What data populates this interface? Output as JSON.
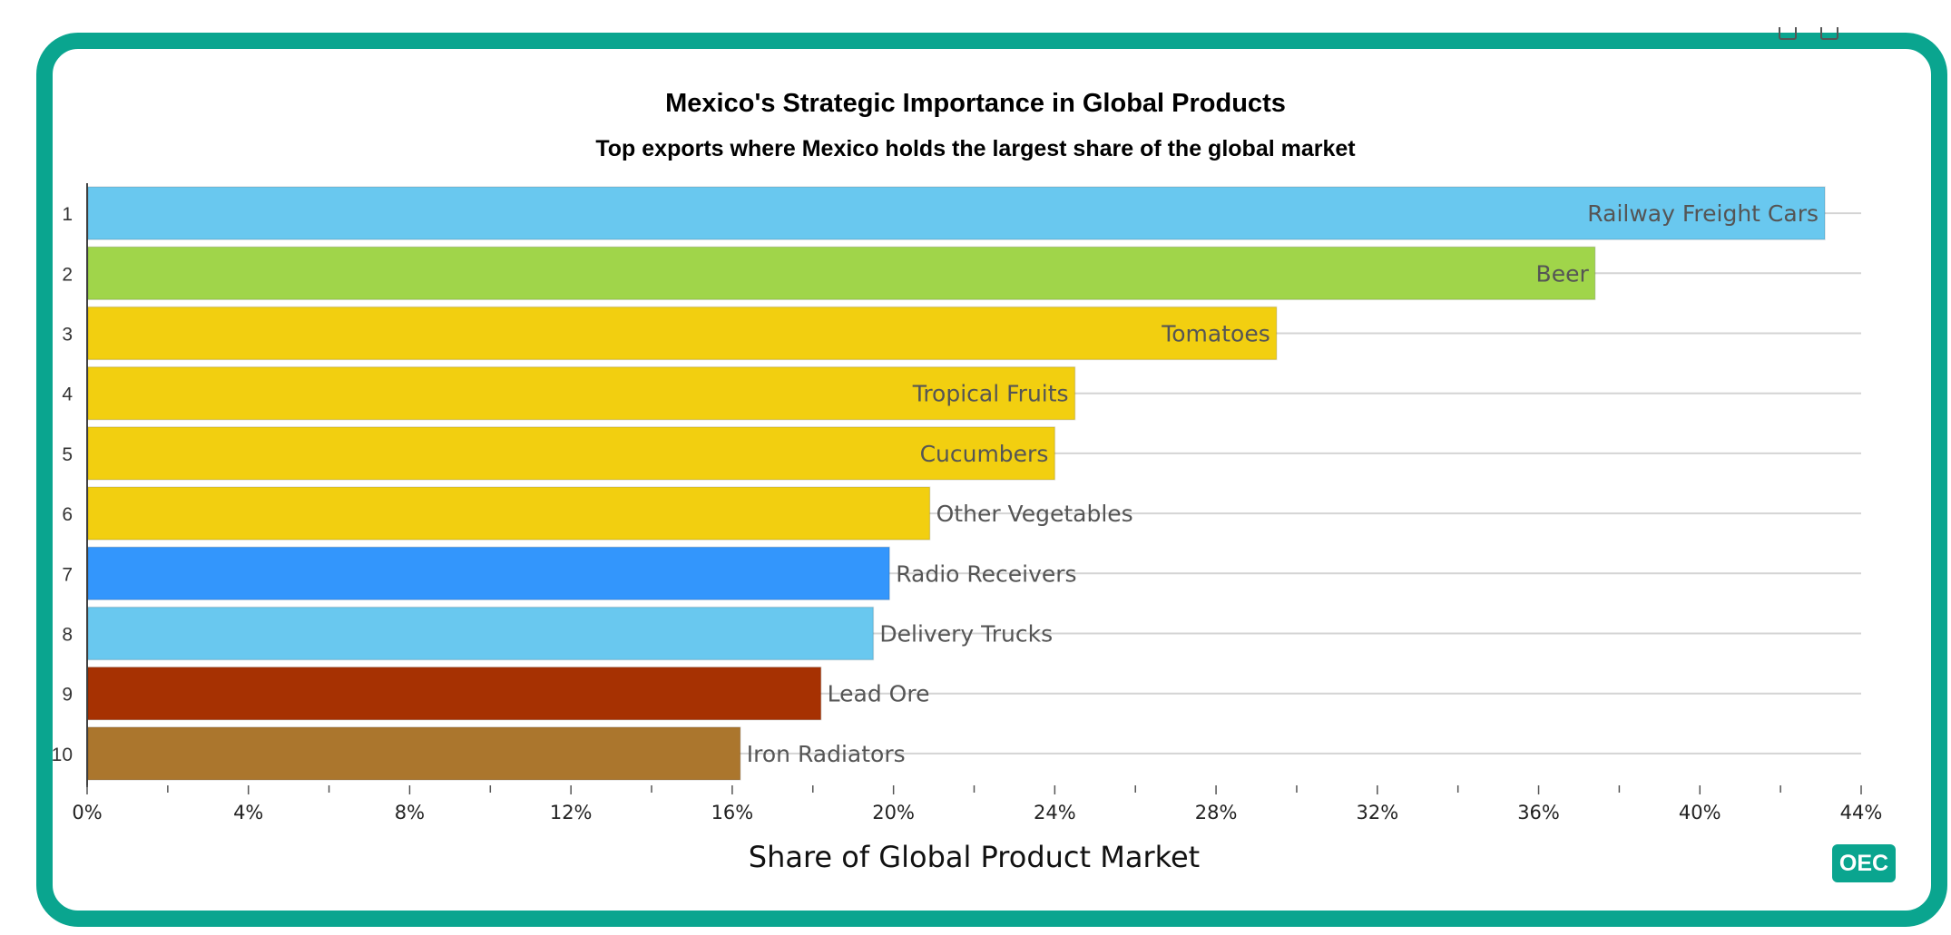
{
  "badge": "OEC",
  "chart_data": {
    "type": "bar",
    "orientation": "horizontal",
    "title": "Mexico's Strategic Importance in Global Products",
    "subtitle": "Top exports where Mexico holds the largest share of the global market",
    "xlabel": "Share of Global Product Market",
    "ylabel": "",
    "xlim": [
      0,
      44
    ],
    "x_ticks": [
      "0%",
      "4%",
      "8%",
      "12%",
      "16%",
      "20%",
      "24%",
      "28%",
      "32%",
      "36%",
      "40%",
      "44%"
    ],
    "x_tick_values": [
      0,
      4,
      8,
      12,
      16,
      20,
      24,
      28,
      32,
      36,
      40,
      44
    ],
    "grid": true,
    "bars": [
      {
        "rank": "1",
        "label": "Railway Freight Cars",
        "value": 43.1,
        "color": "#69c8ef"
      },
      {
        "rank": "2",
        "label": "Beer",
        "value": 37.4,
        "color": "#a0d54a"
      },
      {
        "rank": "3",
        "label": "Tomatoes",
        "value": 29.5,
        "color": "#f2cf10"
      },
      {
        "rank": "4",
        "label": "Tropical Fruits",
        "value": 24.5,
        "color": "#f2cf10"
      },
      {
        "rank": "5",
        "label": "Cucumbers",
        "value": 24.0,
        "color": "#f2cf10"
      },
      {
        "rank": "6",
        "label": "Other Vegetables",
        "value": 20.9,
        "color": "#f2cf10"
      },
      {
        "rank": "7",
        "label": "Radio Receivers",
        "value": 19.9,
        "color": "#3396fc"
      },
      {
        "rank": "8",
        "label": "Delivery Trucks",
        "value": 19.5,
        "color": "#69c8ef"
      },
      {
        "rank": "9",
        "label": "Lead Ore",
        "value": 18.2,
        "color": "#a63102"
      },
      {
        "rank": "10",
        "label": "Iron Radiators",
        "value": 16.2,
        "color": "#ab762d"
      }
    ]
  }
}
